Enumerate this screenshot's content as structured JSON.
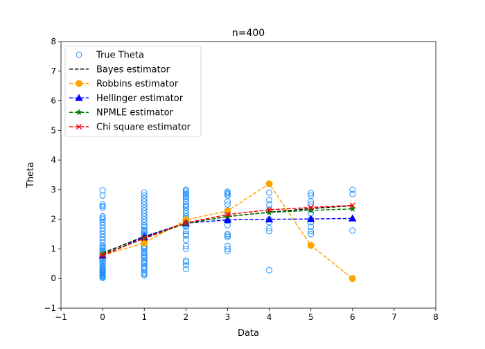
{
  "chart_data": {
    "type": "scatter",
    "title": "n=400",
    "xlabel": "Data",
    "ylabel": "Theta",
    "xlim": [
      -1,
      8
    ],
    "ylim": [
      -1,
      8
    ],
    "x_ticks": [
      -1,
      0,
      1,
      2,
      3,
      4,
      5,
      6,
      7,
      8
    ],
    "y_ticks": [
      -1,
      0,
      1,
      2,
      3,
      4,
      5,
      6,
      7,
      8
    ],
    "grid": false,
    "legend_position": "top-left",
    "true_theta": {
      "name": "True Theta",
      "color": "#1e90ff",
      "marker": "open-circle",
      "points": [
        {
          "x": 0,
          "y": [
            0.02,
            0.05,
            0.08,
            0.1,
            0.12,
            0.15,
            0.18,
            0.2,
            0.22,
            0.25,
            0.28,
            0.3,
            0.35,
            0.4,
            0.45,
            0.5,
            0.55,
            0.6,
            0.65,
            0.7,
            0.75,
            0.8,
            0.85,
            0.9,
            0.95,
            1.0,
            1.05,
            1.1,
            1.2,
            1.3,
            1.4,
            1.5,
            1.6,
            1.7,
            1.8,
            1.9,
            2.0,
            2.05,
            2.1,
            2.4,
            2.45,
            2.5,
            2.8,
            2.98
          ]
        },
        {
          "x": 1,
          "y": [
            0.1,
            0.15,
            0.2,
            0.3,
            0.35,
            0.4,
            0.5,
            0.55,
            0.6,
            0.7,
            0.75,
            0.8,
            0.85,
            0.9,
            1.0,
            1.05,
            1.1,
            1.2,
            1.3,
            1.35,
            1.4,
            1.45,
            1.5,
            1.55,
            1.6,
            1.65,
            1.75,
            1.8,
            1.9,
            2.0,
            2.1,
            2.2,
            2.3,
            2.4,
            2.5,
            2.6,
            2.7,
            2.8,
            2.9
          ]
        },
        {
          "x": 2,
          "y": [
            0.32,
            0.45,
            0.55,
            0.6,
            1.0,
            1.1,
            1.3,
            1.45,
            1.5,
            1.6,
            1.75,
            1.8,
            1.85,
            1.9,
            2.0,
            2.05,
            2.1,
            2.2,
            2.3,
            2.4,
            2.45,
            2.5,
            2.6,
            2.7,
            2.75,
            2.8,
            2.85,
            2.9,
            2.95,
            3.0
          ]
        },
        {
          "x": 3,
          "y": [
            0.92,
            1.0,
            1.1,
            1.4,
            1.45,
            1.5,
            1.8,
            1.95,
            2.2,
            2.3,
            2.5,
            2.6,
            2.8,
            2.85,
            2.9,
            2.93
          ]
        },
        {
          "x": 4,
          "y": [
            0.28,
            1.6,
            1.7,
            1.9,
            2.0,
            2.3,
            2.5,
            2.65,
            2.9
          ]
        },
        {
          "x": 5,
          "y": [
            1.5,
            1.6,
            1.75,
            1.9,
            2.0,
            2.2,
            2.5,
            2.6,
            2.8,
            2.88
          ]
        },
        {
          "x": 6,
          "y": [
            1.62,
            2.85,
            3.0
          ]
        }
      ]
    },
    "x": [
      0,
      1,
      2,
      3,
      4,
      5,
      6
    ],
    "series": [
      {
        "name": "Bayes estimator",
        "color": "#000000",
        "marker": "none",
        "values": [
          0.86,
          1.42,
          1.87,
          2.09,
          2.24,
          2.36,
          2.46
        ]
      },
      {
        "name": "Robbins estimator",
        "color": "#ffa500",
        "marker": "circle",
        "values": [
          0.78,
          1.2,
          1.98,
          2.28,
          3.2,
          1.12,
          0.0
        ]
      },
      {
        "name": "Hellinger estimator",
        "color": "#0000ff",
        "marker": "triangle",
        "values": [
          0.78,
          1.4,
          1.87,
          1.98,
          2.0,
          2.01,
          2.03
        ]
      },
      {
        "name": "NPMLE estimator",
        "color": "#008000",
        "marker": "star",
        "values": [
          0.82,
          1.35,
          1.86,
          2.1,
          2.23,
          2.3,
          2.35
        ]
      },
      {
        "name": "Chi square estimator",
        "color": "#ff0000",
        "marker": "x",
        "values": [
          0.78,
          1.36,
          1.88,
          2.16,
          2.32,
          2.4,
          2.47
        ]
      }
    ]
  }
}
